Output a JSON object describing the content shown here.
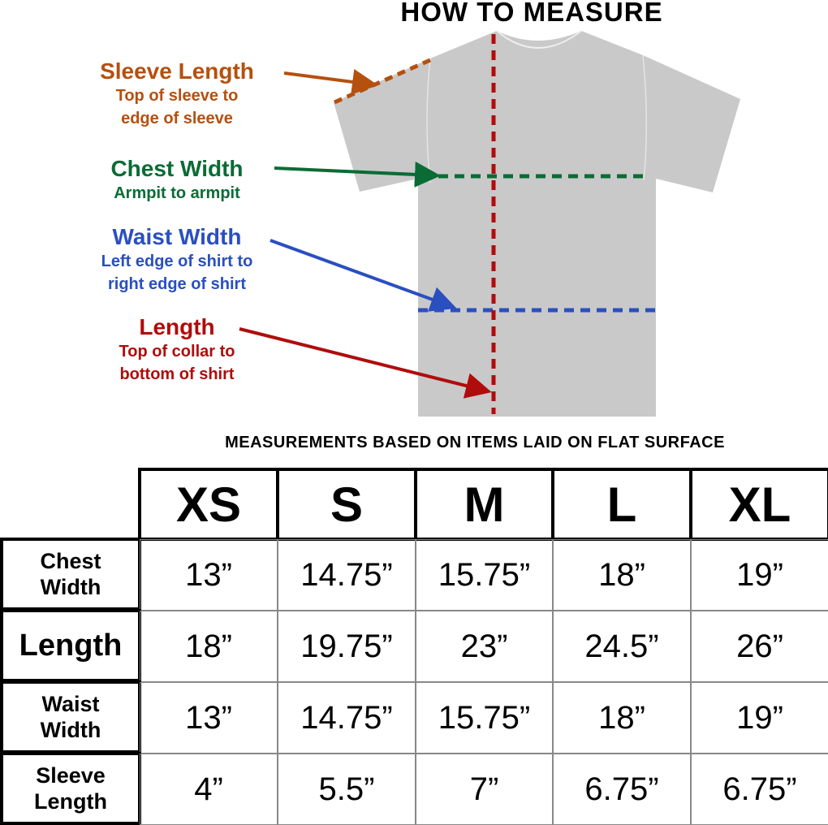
{
  "title": "HOW TO MEASURE",
  "labels": [
    {
      "heading": "Sleeve Length",
      "lines": [
        "Top of sleeve to",
        "edge of sleeve"
      ],
      "color": "#b5500f"
    },
    {
      "heading": "Chest Width",
      "lines": [
        "Armpit to armpit"
      ],
      "color": "#0b6b35"
    },
    {
      "heading": "Waist Width",
      "lines": [
        "Left edge of shirt to",
        "right edge of shirt"
      ],
      "color": "#2a4fc0"
    },
    {
      "heading": "Length",
      "lines": [
        "Top of collar to",
        "bottom of shirt"
      ],
      "color": "#b00c0c"
    }
  ],
  "shirt_color": "#c9c9c9",
  "note": "MEASUREMENTS BASED ON ITEMS LAID ON FLAT SURFACE",
  "table": {
    "sizes": [
      "XS",
      "S",
      "M",
      "L",
      "XL"
    ],
    "rows": [
      {
        "label": "Chest Width",
        "values": [
          "13”",
          "14.75”",
          "15.75”",
          "18”",
          "19”"
        ]
      },
      {
        "label": "Length",
        "values": [
          "18”",
          "19.75”",
          "23”",
          "24.5”",
          "26”"
        ]
      },
      {
        "label": "Waist Width",
        "values": [
          "13”",
          "14.75”",
          "15.75”",
          "18”",
          "19”"
        ]
      },
      {
        "label": "Sleeve Length",
        "values": [
          "4”",
          "5.5”",
          "7”",
          "6.75”",
          "6.75”"
        ]
      }
    ]
  }
}
